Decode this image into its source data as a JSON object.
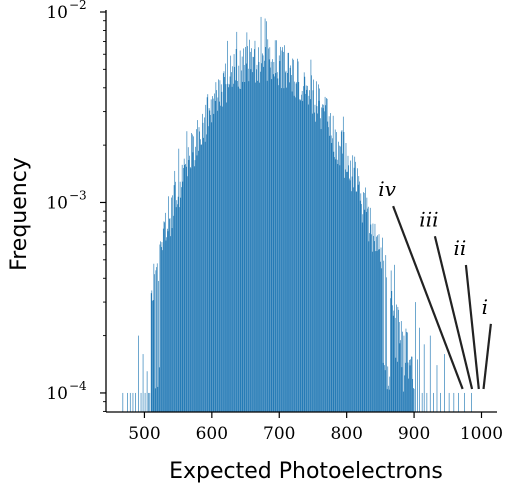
{
  "chart_data": {
    "type": "bar",
    "title": "",
    "xlabel": "Expected Photoelectrons",
    "ylabel": "Frequency",
    "xlim": [
      443,
      1023
    ],
    "ylim_log10": [
      -4.1,
      -2.0
    ],
    "yscale": "log",
    "grid": false,
    "legend": "none",
    "bar_color": "#1f77b4",
    "x_ticks": [
      500,
      600,
      700,
      800,
      900,
      1000
    ],
    "x_tick_labels": [
      "500",
      "600",
      "700",
      "800",
      "900",
      "1000"
    ],
    "y_ticks": [
      {
        "value": 0.0001,
        "base": "10",
        "exponent": "−4"
      },
      {
        "value": 0.001,
        "base": "10",
        "exponent": "−3"
      },
      {
        "value": 0.01,
        "base": "10",
        "exponent": "−2"
      }
    ],
    "histogram": {
      "bin_width": 1,
      "peak_center": 672,
      "peak_frequency": 0.0056,
      "core_start": 510,
      "core_end": 900,
      "sparse_range": [
        468,
        985
      ],
      "floor_frequency": 0.0001,
      "sparse_bins": [
        {
          "x": 468,
          "y": 0.0001
        },
        {
          "x": 475,
          "y": 0.0001
        },
        {
          "x": 479,
          "y": 0.0001
        },
        {
          "x": 483,
          "y": 0.0001
        },
        {
          "x": 487,
          "y": 0.0001
        },
        {
          "x": 491,
          "y": 0.0002
        },
        {
          "x": 495,
          "y": 0.0001
        },
        {
          "x": 498,
          "y": 0.00016
        },
        {
          "x": 501,
          "y": 0.0001
        },
        {
          "x": 504,
          "y": 0.00013
        },
        {
          "x": 506,
          "y": 0.0001
        },
        {
          "x": 508,
          "y": 0.0001
        },
        {
          "x": 902,
          "y": 0.0003
        },
        {
          "x": 905,
          "y": 0.00015
        },
        {
          "x": 908,
          "y": 0.00022
        },
        {
          "x": 912,
          "y": 0.0001
        },
        {
          "x": 915,
          "y": 0.00018
        },
        {
          "x": 919,
          "y": 0.0001
        },
        {
          "x": 924,
          "y": 0.0002
        },
        {
          "x": 929,
          "y": 0.0001
        },
        {
          "x": 934,
          "y": 0.00014
        },
        {
          "x": 939,
          "y": 0.0001
        },
        {
          "x": 945,
          "y": 0.00016
        },
        {
          "x": 952,
          "y": 0.0001
        },
        {
          "x": 959,
          "y": 0.0001
        },
        {
          "x": 966,
          "y": 0.0001
        },
        {
          "x": 975,
          "y": 0.0001
        },
        {
          "x": 985,
          "y": 0.0001
        }
      ]
    },
    "annotations": [
      {
        "label": "iv",
        "label_x": 860,
        "label_y": 0.00108,
        "end_x": 972,
        "end_y": 0.0001
      },
      {
        "label": "iii",
        "label_x": 922,
        "label_y": 0.00075,
        "end_x": 986,
        "end_y": 0.0001
      },
      {
        "label": "ii",
        "label_x": 968,
        "label_y": 0.00053,
        "end_x": 996,
        "end_y": 0.0001
      },
      {
        "label": "i",
        "label_x": 1005,
        "label_y": 0.00026,
        "end_x": 1003,
        "end_y": 0.0001
      }
    ]
  }
}
